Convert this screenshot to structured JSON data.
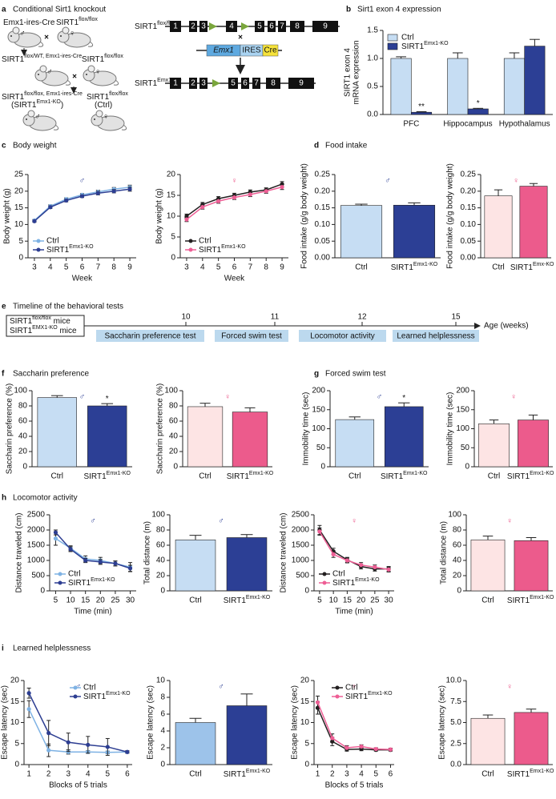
{
  "panels": [
    {
      "letter": "a",
      "title": "Conditional Sirt1 knockout"
    },
    {
      "letter": "b",
      "title": "Sirt1 exon 4 expression"
    },
    {
      "letter": "c",
      "title": "Body weight"
    },
    {
      "letter": "d",
      "title": "Food intake"
    },
    {
      "letter": "e",
      "title": "Timeline of the behavioral tests"
    },
    {
      "letter": "f",
      "title": "Saccharin preference"
    },
    {
      "letter": "g",
      "title": "Forced swim test"
    },
    {
      "letter": "h",
      "title": "Locomotor activity"
    },
    {
      "letter": "i",
      "title": "Learned helplessness"
    }
  ],
  "breeding": {
    "male": "♂",
    "female": "♀",
    "cross": "×",
    "labels": [
      {
        "text": "Emx1-ires-Cre"
      },
      {
        "text": "SIRT1",
        "sup": "flox/flox"
      },
      {
        "text": "SIRT1",
        "sup": "flox/WT, Emx1-ires-Cre"
      },
      {
        "text": "SIRT1",
        "sup": "flox/flox"
      },
      {
        "text": "SIRT1",
        "sup": "flox/flox, Emx1-ires-Cre"
      },
      {
        "text": "(SIRT1",
        "sup": "Emx1-KO",
        "tail": ")"
      },
      {
        "text": "SIRT1",
        "sup": "flox/flox"
      },
      {
        "text": "(Ctrl)"
      }
    ]
  },
  "constructs": {
    "flox": {
      "label": {
        "text": "SIRT1",
        "sup": "flox/flox"
      },
      "exons": [
        1,
        2,
        3,
        4,
        5,
        6,
        7,
        8,
        9
      ]
    },
    "cassette": [
      "Emx1",
      "IRES",
      "Cre"
    ],
    "ko": {
      "label": {
        "text": "SIRT1",
        "sup": "Emx1-KO"
      },
      "exons": [
        1,
        2,
        3,
        5,
        6,
        7,
        8,
        9
      ]
    }
  },
  "timeline": {
    "cohorts": [
      {
        "text": "SIRT1",
        "sup": "flox/flox",
        "tail": " mice"
      },
      {
        "text": "SIRT1",
        "sup": "EMX1-KO",
        "tail": " mice"
      }
    ],
    "weeks": [
      10,
      11,
      12,
      15
    ],
    "tests": [
      "Saccharin preference test",
      "Forced swim test",
      "Locomotor activity",
      "Learned helplessness"
    ],
    "axis_label": "Age (weeks)"
  },
  "chart_data": [
    {
      "type": "bar",
      "ylabel": [
        "SIRT1 exon 4",
        "mRNA expression"
      ],
      "categories": [
        "PFC",
        "Hippocampus",
        "Hypothalamus"
      ],
      "series": [
        {
          "name": "Ctrl",
          "color": "#c6ddf3",
          "values": [
            1.0,
            1.0,
            1.0
          ],
          "errors": [
            0.03,
            0.1,
            0.1
          ]
        },
        {
          "name": {
            "text": "SIRT1",
            "sup": "Emx1-KO"
          },
          "color": "#2c3f95",
          "values": [
            0.04,
            0.1,
            1.22
          ],
          "errors": [
            0.01,
            0.01,
            0.12
          ],
          "sig": [
            "**",
            "*",
            null
          ]
        }
      ],
      "ylim": [
        0,
        1.5
      ],
      "yticks": [
        {
          "value": 0,
          "label": "0.0"
        },
        {
          "value": 0.5,
          "label": "0.5"
        },
        {
          "value": 1,
          "label": "1.0"
        },
        {
          "value": 1.5,
          "label": "1.5"
        }
      ],
      "legend": "upper left"
    },
    {
      "type": "line",
      "symbol": "♂",
      "symbol_color": "#2c3f95",
      "xlabel": "Week",
      "ylabel": "Body weight (g)",
      "x": [
        3,
        4,
        5,
        6,
        7,
        8,
        9
      ],
      "xlim": [
        2.6,
        9.4
      ],
      "xticks": [
        3,
        4,
        5,
        6,
        7,
        8,
        9
      ],
      "ylim": [
        0,
        25
      ],
      "yticks": [
        0,
        5,
        10,
        15,
        20,
        25
      ],
      "series": [
        {
          "name": "Ctrl",
          "color": "#7eb2e4",
          "values": [
            11.2,
            15.5,
            17.6,
            18.9,
            19.8,
            20.6,
            21.2
          ],
          "errors": [
            0.3,
            0.4,
            0.4,
            0.4,
            0.5,
            0.5,
            0.6
          ]
        },
        {
          "name": {
            "text": "SIRT1",
            "sup": "Emx1-KO"
          },
          "color": "#2d3e92",
          "values": [
            11.0,
            15.2,
            17.2,
            18.5,
            19.4,
            20.0,
            20.6
          ],
          "errors": [
            0.3,
            0.4,
            0.4,
            0.4,
            0.5,
            0.5,
            0.6
          ]
        }
      ],
      "legend": "lower left"
    },
    {
      "type": "line",
      "symbol": "♀",
      "symbol_color": "#ec5b8c",
      "xlabel": "Week",
      "ylabel": "Body weight (g)",
      "x": [
        3,
        4,
        5,
        6,
        7,
        8,
        9
      ],
      "xlim": [
        2.6,
        9.4
      ],
      "xticks": [
        3,
        4,
        5,
        6,
        7,
        8,
        9
      ],
      "ylim": [
        0,
        20
      ],
      "yticks": [
        0,
        5,
        10,
        15,
        20
      ],
      "series": [
        {
          "name": "Ctrl",
          "color": "#231f20",
          "values": [
            10.0,
            12.8,
            14.2,
            15.0,
            15.8,
            16.3,
            17.7
          ],
          "errors": [
            0.5,
            0.5,
            0.5,
            0.5,
            0.5,
            0.5,
            0.6
          ]
        },
        {
          "name": {
            "text": "SIRT1",
            "sup": "Emx1-KO"
          },
          "color": "#ee5e95",
          "values": [
            9.2,
            12.2,
            13.6,
            14.5,
            15.2,
            16.0,
            17.0
          ],
          "errors": [
            0.5,
            0.5,
            0.5,
            0.5,
            0.5,
            0.5,
            0.6
          ]
        }
      ],
      "legend": "lower left"
    },
    {
      "type": "bar",
      "symbol": "♂",
      "symbol_color": "#2c3f95",
      "ylabel": "Food intake (g/g body weight)",
      "categories": [
        "Ctrl",
        {
          "text": "SIRT1",
          "sup": "Emx1-KO"
        }
      ],
      "values": [
        0.157,
        0.158
      ],
      "errors": [
        0.004,
        0.007
      ],
      "colors": [
        "#c6ddf3",
        "#2c3f95"
      ],
      "ylim": [
        0,
        0.25
      ],
      "yticks": [
        {
          "value": 0,
          "label": "0.00"
        },
        {
          "value": 0.05,
          "label": "0.05"
        },
        {
          "value": 0.1,
          "label": "0.10"
        },
        {
          "value": 0.15,
          "label": "0.15"
        },
        {
          "value": 0.2,
          "label": "0.20"
        },
        {
          "value": 0.25,
          "label": "0.25"
        }
      ]
    },
    {
      "type": "bar",
      "symbol": "♀",
      "symbol_color": "#ec5b8c",
      "ylabel": "Food intake (g/g body weight)",
      "categories": [
        "Ctrl",
        {
          "text": "SIRT1",
          "sup": "Emx-KO"
        }
      ],
      "values": [
        0.186,
        0.215
      ],
      "errors": [
        0.018,
        0.008
      ],
      "colors": [
        "#fde4e4",
        "#ec5b8c"
      ],
      "ylim": [
        0,
        0.25
      ],
      "yticks": [
        {
          "value": 0,
          "label": "0.00"
        },
        {
          "value": 0.05,
          "label": "0.05"
        },
        {
          "value": 0.1,
          "label": "0.10"
        },
        {
          "value": 0.15,
          "label": "0.15"
        },
        {
          "value": 0.2,
          "label": "0.20"
        },
        {
          "value": 0.25,
          "label": "0.25"
        }
      ]
    },
    {
      "type": "bar",
      "symbol": "♂",
      "symbol_color": "#2c3f95",
      "ylabel": "Saccharin preference (%)",
      "categories": [
        "Ctrl",
        {
          "text": "SIRT1",
          "sup": "Emx1-KO"
        }
      ],
      "values": [
        91,
        80
      ],
      "errors": [
        2.5,
        3
      ],
      "sig": [
        null,
        "*"
      ],
      "colors": [
        "#c6ddf3",
        "#2c3f95"
      ],
      "ylim": [
        0,
        100
      ],
      "yticks": [
        0,
        20,
        40,
        60,
        80,
        100
      ]
    },
    {
      "type": "bar",
      "symbol": "♀",
      "symbol_color": "#ec5b8c",
      "ylabel": "Saccharin preference (%)",
      "categories": [
        "Ctrl",
        {
          "text": "SIRT1",
          "sup": "Emx1-KO"
        }
      ],
      "values": [
        79,
        72
      ],
      "errors": [
        4.5,
        5.5
      ],
      "colors": [
        "#fde4e4",
        "#ec5b8c"
      ],
      "ylim": [
        0,
        100
      ],
      "yticks": [
        0,
        20,
        40,
        60,
        80,
        100
      ]
    },
    {
      "type": "bar",
      "symbol": "♂",
      "symbol_color": "#2c3f95",
      "ylabel": "Immobility time (sec)",
      "categories": [
        "Ctrl",
        {
          "text": "SIRT1",
          "sup": "Emx1-KO"
        }
      ],
      "values": [
        124,
        158
      ],
      "errors": [
        7,
        10
      ],
      "sig": [
        null,
        "*"
      ],
      "colors": [
        "#c6ddf3",
        "#2c3f95"
      ],
      "ylim": [
        0,
        200
      ],
      "yticks": [
        0,
        50,
        100,
        150,
        200
      ]
    },
    {
      "type": "bar",
      "symbol": "♀",
      "symbol_color": "#ec5b8c",
      "ylabel": "Immobility time (sec)",
      "categories": [
        "Ctrl",
        {
          "text": "SIRT1",
          "sup": "Emx1-KO"
        }
      ],
      "values": [
        113,
        123
      ],
      "errors": [
        10,
        13
      ],
      "colors": [
        "#fde4e4",
        "#ec5b8c"
      ],
      "ylim": [
        0,
        200
      ],
      "yticks": [
        0,
        50,
        100,
        150,
        200
      ]
    },
    {
      "type": "line",
      "symbol": "♂",
      "symbol_color": "#2c3f95",
      "xlabel": "Time (min)",
      "ylabel": "Distance traveled (cm)",
      "x": [
        5,
        10,
        15,
        20,
        25,
        30
      ],
      "xlim": [
        3,
        32
      ],
      "xticks": [
        5,
        10,
        15,
        20,
        25,
        30
      ],
      "ylim": [
        0,
        2500
      ],
      "yticks": [
        0,
        500,
        1000,
        1500,
        2000,
        2500
      ],
      "series": [
        {
          "name": "Ctrl",
          "color": "#7eb2e4",
          "values": [
            1720,
            1400,
            1050,
            1000,
            900,
            780
          ],
          "errors": [
            220,
            80,
            100,
            100,
            80,
            150
          ]
        },
        {
          "name": {
            "text": "SIRT1",
            "sup": "Emx1-KO"
          },
          "color": "#2d3e92",
          "values": [
            1920,
            1370,
            1000,
            950,
            900,
            740
          ],
          "errors": [
            80,
            80,
            70,
            80,
            80,
            100
          ]
        }
      ],
      "legend": "lower left"
    },
    {
      "type": "bar",
      "symbol": "♂",
      "symbol_color": "#2c3f95",
      "ylabel": "Total distance (m)",
      "categories": [
        "Ctrl",
        {
          "text": "SIRT1",
          "sup": "Emx1-KO"
        }
      ],
      "values": [
        67,
        70
      ],
      "errors": [
        6,
        4
      ],
      "colors": [
        "#c6ddf3",
        "#2c3f95"
      ],
      "ylim": [
        0,
        100
      ],
      "yticks": [
        0,
        20,
        40,
        60,
        80,
        100
      ]
    },
    {
      "type": "line",
      "symbol": "♀",
      "symbol_color": "#ec5b8c",
      "xlabel": "Time (min)",
      "ylabel": "Distance traveled (cm)",
      "x": [
        5,
        10,
        15,
        20,
        25,
        30
      ],
      "xlim": [
        3,
        32
      ],
      "xticks": [
        5,
        10,
        15,
        20,
        25,
        30
      ],
      "ylim": [
        0,
        2500
      ],
      "yticks": [
        0,
        500,
        1000,
        1500,
        2000,
        2500
      ],
      "series": [
        {
          "name": "Ctrl",
          "color": "#231f20",
          "values": [
            2000,
            1300,
            1020,
            800,
            720,
            720
          ],
          "errors": [
            150,
            100,
            80,
            80,
            70,
            80
          ]
        },
        {
          "name": {
            "text": "SIRT1",
            "sup": "Emx1-KO"
          },
          "color": "#ee5e95",
          "values": [
            1950,
            1200,
            1000,
            850,
            780,
            700
          ],
          "errors": [
            120,
            100,
            80,
            80,
            70,
            80
          ]
        }
      ],
      "legend": "lower left"
    },
    {
      "type": "bar",
      "symbol": "♀",
      "symbol_color": "#ec5b8c",
      "ylabel": "Total distance (m)",
      "categories": [
        "Ctrl",
        {
          "text": "SIRT1",
          "sup": "Emx1-KO"
        }
      ],
      "values": [
        67,
        66
      ],
      "errors": [
        5,
        4
      ],
      "colors": [
        "#fde4e4",
        "#ec5b8c"
      ],
      "ylim": [
        0,
        100
      ],
      "yticks": [
        0,
        20,
        40,
        60,
        80,
        100
      ]
    },
    {
      "type": "line",
      "symbol": "♂",
      "symbol_color": "#2c3f95",
      "xlabel": "Blocks of 5 trials",
      "ylabel": "Escape latency (sec)",
      "x": [
        1,
        2,
        3,
        4,
        5,
        6
      ],
      "xlim": [
        0.75,
        6.25
      ],
      "xticks": [
        1,
        2,
        3,
        4,
        5,
        6
      ],
      "ylim": [
        0,
        20
      ],
      "yticks": [
        0,
        5,
        10,
        15,
        20
      ],
      "series": [
        {
          "name": "Ctrl",
          "color": "#7eb2e4",
          "values": [
            13.2,
            3.4,
            3.0,
            3.0,
            2.9,
            3.0
          ],
          "errors": [
            2,
            1.5,
            0.5,
            0.3,
            0.3,
            0.2
          ]
        },
        {
          "name": {
            "text": "SIRT1",
            "sup": "Emx1-KO"
          },
          "color": "#2d3e92",
          "values": [
            17,
            7.5,
            5.3,
            4.7,
            4.2,
            3.0
          ],
          "errors": [
            1.2,
            3,
            2.2,
            2.0,
            2.0,
            0.3
          ]
        }
      ],
      "legend": "upper right"
    },
    {
      "type": "bar",
      "symbol": "♂",
      "symbol_color": "#2c3f95",
      "ylabel": "Escape latency (sec)",
      "categories": [
        "Ctrl",
        {
          "text": "SIRT1",
          "sup": "Emx1-KO"
        }
      ],
      "values": [
        5.0,
        7.0
      ],
      "errors": [
        0.5,
        1.4
      ],
      "colors": [
        "#9dc3ea",
        "#2c3f95"
      ],
      "ylim": [
        0,
        10
      ],
      "yticks": [
        0,
        2,
        4,
        6,
        8,
        10
      ]
    },
    {
      "type": "line",
      "symbol": "♀",
      "symbol_color": "#ec5b8c",
      "xlabel": "Blocks of 5 trials",
      "ylabel": "Escape latency (sec)",
      "x": [
        1,
        2,
        3,
        4,
        5,
        6
      ],
      "xlim": [
        0.75,
        6.25
      ],
      "xticks": [
        1,
        2,
        3,
        4,
        5,
        6
      ],
      "ylim": [
        0,
        20
      ],
      "yticks": [
        0,
        5,
        10,
        15,
        20
      ],
      "series": [
        {
          "name": "Ctrl",
          "color": "#231f20",
          "values": [
            13.5,
            5.5,
            3.6,
            3.7,
            3.5,
            3.5
          ],
          "errors": [
            1.5,
            1.0,
            0.4,
            0.4,
            0.3,
            0.3
          ]
        },
        {
          "name": {
            "text": "SIRT1",
            "sup": "Emx1-KO"
          },
          "color": "#ee5e95",
          "values": [
            14.8,
            6.3,
            4.0,
            4.3,
            3.7,
            3.6
          ],
          "errors": [
            1.5,
            1.0,
            0.5,
            0.4,
            0.3,
            0.3
          ]
        }
      ],
      "legend": "upper right"
    },
    {
      "type": "bar",
      "symbol": "♀",
      "symbol_color": "#ec5b8c",
      "ylabel": "Escape latency (sec)",
      "categories": [
        "Ctrl",
        {
          "text": "SIRT1",
          "sup": "Emx1-KO"
        }
      ],
      "values": [
        5.5,
        6.2
      ],
      "errors": [
        0.4,
        0.4
      ],
      "colors": [
        "#fde4e4",
        "#ec5b8c"
      ],
      "ylim": [
        0,
        10
      ],
      "yticks": [
        {
          "value": 0,
          "label": "0.0"
        },
        {
          "value": 2.5,
          "label": "2.5"
        },
        {
          "value": 5,
          "label": "5.0"
        },
        {
          "value": 7.5,
          "label": "7.5"
        },
        {
          "value": 10,
          "label": "10.0"
        }
      ]
    }
  ]
}
